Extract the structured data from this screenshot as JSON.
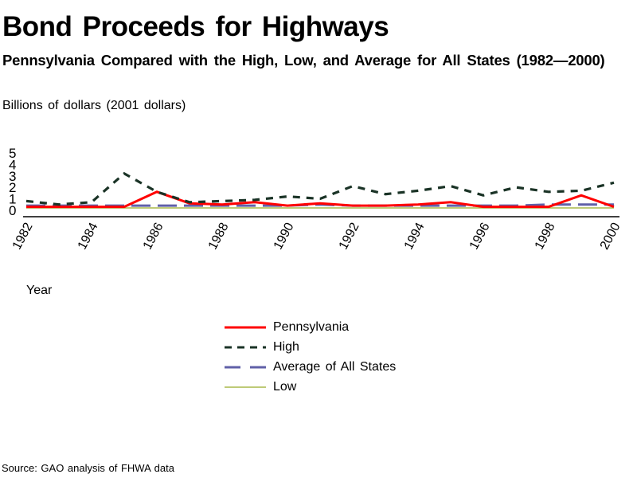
{
  "chart_data": {
    "type": "line",
    "title": "Bond Proceeds for Highways",
    "subtitle": "Pennsylvania Compared with the High, Low, and Average for All States (1982—2000)",
    "ylabel": "Billions of dollars (2001 dollars)",
    "xlabel": "Year",
    "source": "Source: GAO analysis of FHWA data",
    "x": [
      1982,
      1983,
      1984,
      1985,
      1986,
      1987,
      1988,
      1989,
      1990,
      1991,
      1992,
      1993,
      1994,
      1995,
      1996,
      1997,
      1998,
      1999,
      2000
    ],
    "x_tick_labels": [
      "1982",
      "1984",
      "1986",
      "1988",
      "1990",
      "1992",
      "1994",
      "1996",
      "1998",
      "2000"
    ],
    "y_tick_labels": [
      "0",
      "1",
      "2",
      "3",
      "4",
      "5"
    ],
    "ylim": [
      0,
      5
    ],
    "grid": false,
    "legend_position": "bottom-center",
    "series": [
      {
        "name": "Pennsylvania",
        "color": "#ff0000",
        "style": "solid",
        "values": [
          0.1,
          0.1,
          0.1,
          0.1,
          1.4,
          0.4,
          0.3,
          0.5,
          0.2,
          0.4,
          0.2,
          0.2,
          0.3,
          0.5,
          0.1,
          0.1,
          0.1,
          1.1,
          0.1
        ]
      },
      {
        "name": "High",
        "color": "#1a3326",
        "style": "dashed",
        "values": [
          0.6,
          0.3,
          0.5,
          3.0,
          1.4,
          0.5,
          0.6,
          0.7,
          1.0,
          0.8,
          1.9,
          1.2,
          1.5,
          1.9,
          1.1,
          1.8,
          1.4,
          1.5,
          2.2
        ]
      },
      {
        "name": "Average of All States",
        "color": "#6060a8",
        "style": "longdash",
        "values": [
          0.2,
          0.2,
          0.2,
          0.2,
          0.2,
          0.2,
          0.2,
          0.2,
          0.2,
          0.3,
          0.2,
          0.2,
          0.2,
          0.2,
          0.2,
          0.2,
          0.3,
          0.3,
          0.3
        ]
      },
      {
        "name": "Low",
        "color": "#a8b84a",
        "style": "solid-thin",
        "values": [
          0,
          0,
          0,
          0,
          0,
          0,
          0,
          0,
          0,
          0,
          0,
          0,
          0,
          0,
          0,
          0,
          0,
          0,
          0
        ]
      }
    ]
  }
}
